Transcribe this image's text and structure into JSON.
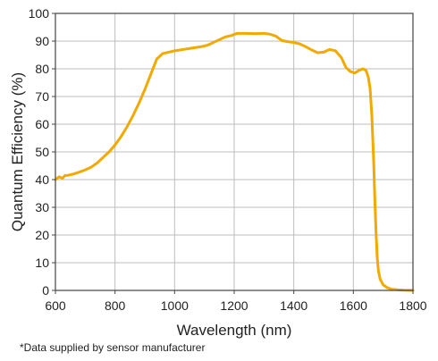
{
  "chart_data": {
    "type": "line",
    "title": "",
    "xlabel": "Wavelength (nm)",
    "ylabel": "Quantum Efficiency (%)",
    "xlim": [
      600,
      1800
    ],
    "ylim": [
      0,
      100
    ],
    "xticks": [
      600,
      800,
      1000,
      1200,
      1400,
      1600,
      1800
    ],
    "yticks": [
      0,
      10,
      20,
      30,
      40,
      50,
      60,
      70,
      80,
      90,
      100
    ],
    "grid": true,
    "legend": "none",
    "series": [
      {
        "color": "#F2A900",
        "x": [
          600,
          612,
          624,
          632,
          640,
          660,
          680,
          700,
          720,
          740,
          760,
          780,
          800,
          820,
          840,
          860,
          880,
          900,
          920,
          940,
          960,
          980,
          1000,
          1030,
          1060,
          1090,
          1110,
          1130,
          1150,
          1170,
          1190,
          1210,
          1240,
          1270,
          1300,
          1320,
          1340,
          1360,
          1380,
          1400,
          1420,
          1440,
          1460,
          1480,
          1500,
          1520,
          1540,
          1560,
          1575,
          1590,
          1605,
          1620,
          1632,
          1642,
          1650,
          1656,
          1662,
          1668,
          1672,
          1676,
          1680,
          1684,
          1690,
          1700,
          1715,
          1730,
          1750,
          1770,
          1790,
          1800
        ],
        "y": [
          40,
          41,
          40.5,
          41.5,
          41.5,
          42,
          42.7,
          43.5,
          44.5,
          46,
          48,
          50,
          52.5,
          55.5,
          59,
          63,
          67.5,
          72.5,
          78,
          83.5,
          85.5,
          86,
          86.5,
          87,
          87.5,
          88,
          88.5,
          89.5,
          90.5,
          91.5,
          92,
          92.8,
          92.8,
          92.7,
          92.8,
          92.5,
          91.8,
          90.2,
          89.8,
          89.5,
          89,
          88,
          86.8,
          85.8,
          86,
          87,
          86.5,
          84,
          80.5,
          79,
          78.5,
          79.5,
          80,
          79.5,
          77,
          73,
          63,
          47,
          33,
          21,
          12,
          7,
          4,
          2,
          0.9,
          0.4,
          0.2,
          0.1,
          0.05,
          0
        ]
      }
    ]
  },
  "footnote": "*Data supplied by sensor manufacturer"
}
